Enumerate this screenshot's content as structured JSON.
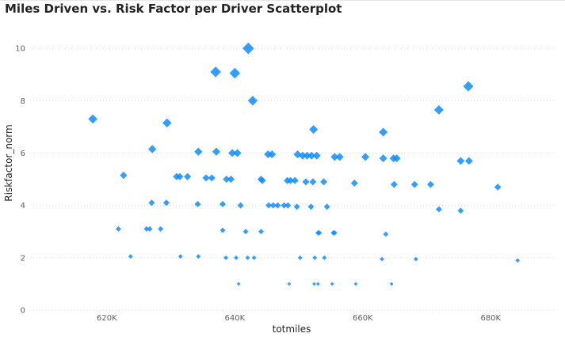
{
  "chart_data": {
    "type": "scatter",
    "title": "Miles Driven vs. Risk Factor per Driver Scatterplot",
    "xlabel": "totmiles",
    "ylabel": "Riskfactor_norm",
    "xlim": [
      608000,
      690000
    ],
    "ylim": [
      0,
      11
    ],
    "x_ticks": [
      620000,
      640000,
      660000,
      680000
    ],
    "x_tick_labels": [
      "620K",
      "640K",
      "660K",
      "680K"
    ],
    "y_ticks": [
      0,
      2,
      4,
      6,
      8,
      10
    ],
    "y_tick_labels": [
      "0",
      "2",
      "4",
      "6",
      "8",
      "10"
    ],
    "horizontal_grid": true,
    "marker": "diamond",
    "marker_size_scales_with": "y",
    "color": "#118dff",
    "points": [
      {
        "x": 617800,
        "y": 7.3
      },
      {
        "x": 629400,
        "y": 7.15
      },
      {
        "x": 637000,
        "y": 9.1
      },
      {
        "x": 640000,
        "y": 9.05
      },
      {
        "x": 642100,
        "y": 10.0
      },
      {
        "x": 642800,
        "y": 8.0
      },
      {
        "x": 652300,
        "y": 6.9
      },
      {
        "x": 663200,
        "y": 6.8
      },
      {
        "x": 671900,
        "y": 7.65
      },
      {
        "x": 676500,
        "y": 8.55
      },
      {
        "x": 627100,
        "y": 6.15
      },
      {
        "x": 634300,
        "y": 6.05
      },
      {
        "x": 637100,
        "y": 6.05
      },
      {
        "x": 639600,
        "y": 6.0
      },
      {
        "x": 640400,
        "y": 6.0
      },
      {
        "x": 645200,
        "y": 5.95
      },
      {
        "x": 645800,
        "y": 5.95
      },
      {
        "x": 649800,
        "y": 5.95
      },
      {
        "x": 650600,
        "y": 5.9
      },
      {
        "x": 651300,
        "y": 5.9
      },
      {
        "x": 652000,
        "y": 5.9
      },
      {
        "x": 652800,
        "y": 5.9
      },
      {
        "x": 655600,
        "y": 5.85
      },
      {
        "x": 656400,
        "y": 5.85
      },
      {
        "x": 660400,
        "y": 5.85
      },
      {
        "x": 663200,
        "y": 5.8
      },
      {
        "x": 664800,
        "y": 5.8
      },
      {
        "x": 665300,
        "y": 5.8
      },
      {
        "x": 675300,
        "y": 5.7
      },
      {
        "x": 676600,
        "y": 5.7
      },
      {
        "x": 622600,
        "y": 5.15
      },
      {
        "x": 630900,
        "y": 5.1
      },
      {
        "x": 631400,
        "y": 5.1
      },
      {
        "x": 632600,
        "y": 5.1
      },
      {
        "x": 635500,
        "y": 5.05
      },
      {
        "x": 636400,
        "y": 5.05
      },
      {
        "x": 638700,
        "y": 5.0
      },
      {
        "x": 639400,
        "y": 5.0
      },
      {
        "x": 644100,
        "y": 5.0
      },
      {
        "x": 644300,
        "y": 4.95
      },
      {
        "x": 648200,
        "y": 4.95
      },
      {
        "x": 648700,
        "y": 4.95
      },
      {
        "x": 649400,
        "y": 4.95
      },
      {
        "x": 651100,
        "y": 4.9
      },
      {
        "x": 652200,
        "y": 4.9
      },
      {
        "x": 653900,
        "y": 4.9
      },
      {
        "x": 658700,
        "y": 4.85
      },
      {
        "x": 664900,
        "y": 4.8
      },
      {
        "x": 668100,
        "y": 4.8
      },
      {
        "x": 670600,
        "y": 4.8
      },
      {
        "x": 681100,
        "y": 4.7
      },
      {
        "x": 627000,
        "y": 4.1
      },
      {
        "x": 629300,
        "y": 4.1
      },
      {
        "x": 634200,
        "y": 4.05
      },
      {
        "x": 638100,
        "y": 4.05
      },
      {
        "x": 640900,
        "y": 4.0
      },
      {
        "x": 645300,
        "y": 4.0
      },
      {
        "x": 646000,
        "y": 4.0
      },
      {
        "x": 646700,
        "y": 4.0
      },
      {
        "x": 647700,
        "y": 4.0
      },
      {
        "x": 648300,
        "y": 4.0
      },
      {
        "x": 649700,
        "y": 3.95
      },
      {
        "x": 651900,
        "y": 3.95
      },
      {
        "x": 654400,
        "y": 3.95
      },
      {
        "x": 671900,
        "y": 3.85
      },
      {
        "x": 675300,
        "y": 3.8
      },
      {
        "x": 621800,
        "y": 3.1
      },
      {
        "x": 626200,
        "y": 3.1
      },
      {
        "x": 626700,
        "y": 3.1
      },
      {
        "x": 628400,
        "y": 3.1
      },
      {
        "x": 638100,
        "y": 3.05
      },
      {
        "x": 641700,
        "y": 3.0
      },
      {
        "x": 644100,
        "y": 3.0
      },
      {
        "x": 653000,
        "y": 2.95
      },
      {
        "x": 653200,
        "y": 2.95
      },
      {
        "x": 655400,
        "y": 2.95
      },
      {
        "x": 655600,
        "y": 2.95
      },
      {
        "x": 663600,
        "y": 2.9
      },
      {
        "x": 623700,
        "y": 2.05
      },
      {
        "x": 631500,
        "y": 2.05
      },
      {
        "x": 634300,
        "y": 2.05
      },
      {
        "x": 638600,
        "y": 2.0
      },
      {
        "x": 640200,
        "y": 2.0
      },
      {
        "x": 642000,
        "y": 2.0
      },
      {
        "x": 643000,
        "y": 2.0
      },
      {
        "x": 650200,
        "y": 2.0
      },
      {
        "x": 652500,
        "y": 2.0
      },
      {
        "x": 654000,
        "y": 2.0
      },
      {
        "x": 663000,
        "y": 1.95
      },
      {
        "x": 668300,
        "y": 1.95
      },
      {
        "x": 684200,
        "y": 1.9
      },
      {
        "x": 640600,
        "y": 1.0
      },
      {
        "x": 648500,
        "y": 1.0
      },
      {
        "x": 652400,
        "y": 1.0
      },
      {
        "x": 653000,
        "y": 1.0
      },
      {
        "x": 655200,
        "y": 1.0
      },
      {
        "x": 658900,
        "y": 1.0
      },
      {
        "x": 664500,
        "y": 1.0
      }
    ]
  }
}
